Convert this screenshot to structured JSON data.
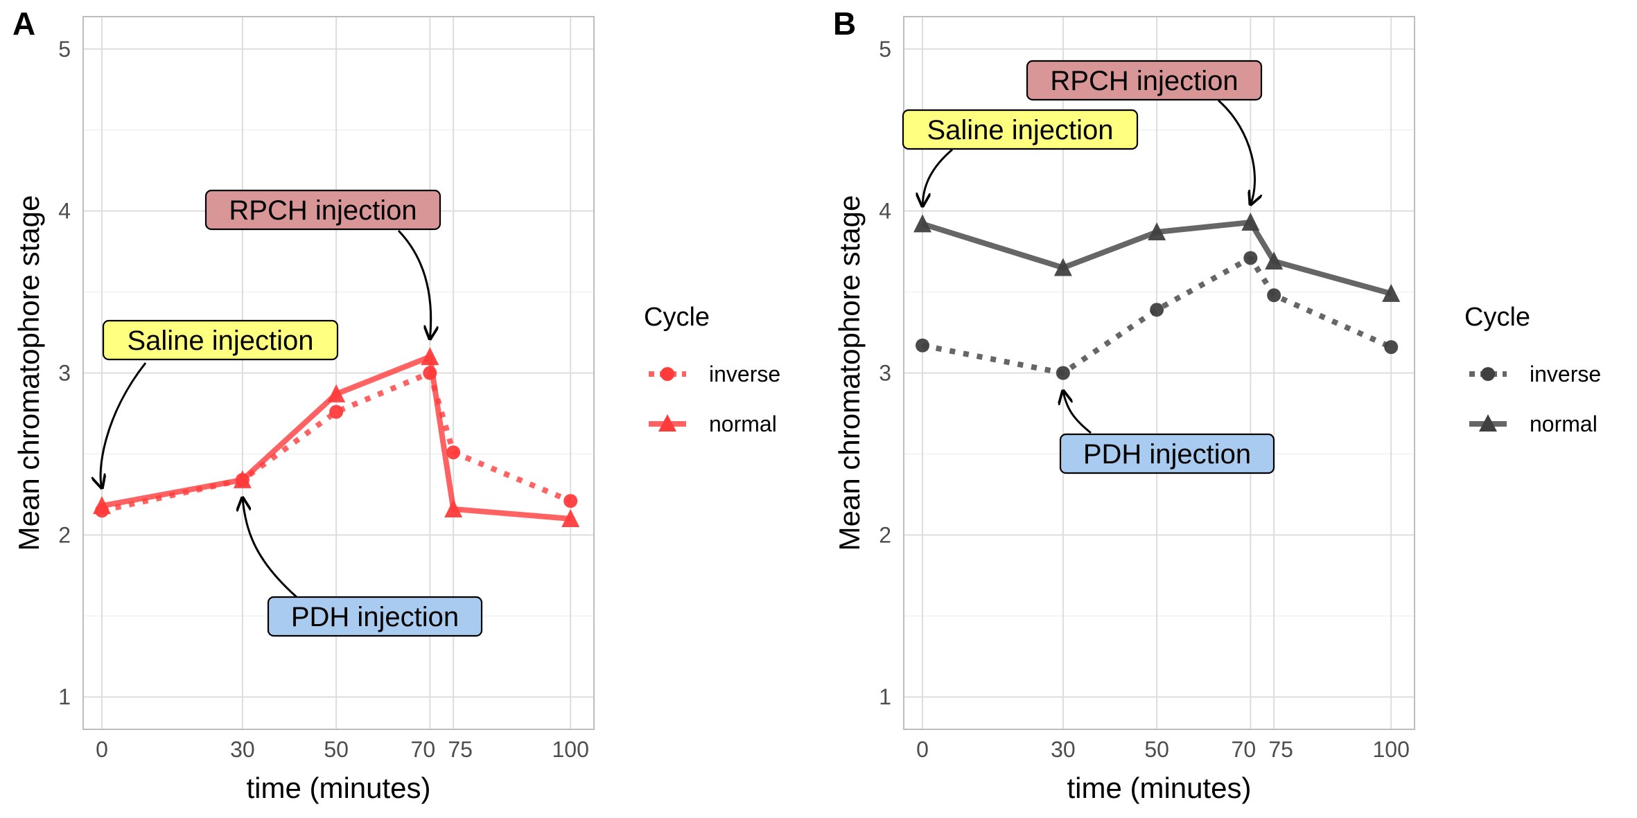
{
  "chart_data": [
    {
      "panel_tag": "A",
      "type": "line",
      "xlabel": "time (minutes)",
      "ylabel": "Mean chromatophore stage",
      "xlim": [
        -4,
        105
      ],
      "ylim": [
        0.8,
        5.2
      ],
      "x_ticks": [
        0,
        30,
        50,
        70,
        75,
        100
      ],
      "y_ticks": [
        1,
        2,
        3,
        4,
        5
      ],
      "grid": true,
      "legend_title": "Cycle",
      "legend_position": "right",
      "color": "#ff3b3b",
      "series": [
        {
          "name": "inverse",
          "line_style": "dotted",
          "marker": "circle",
          "x": [
            0,
            30,
            50,
            70,
            75,
            100
          ],
          "y": [
            2.15,
            2.34,
            2.76,
            3.0,
            2.51,
            2.21
          ]
        },
        {
          "name": "normal",
          "line_style": "solid",
          "marker": "triangle",
          "x": [
            0,
            30,
            50,
            70,
            75,
            100
          ],
          "y": [
            2.18,
            2.34,
            2.87,
            3.1,
            2.16,
            2.1
          ]
        }
      ],
      "annotations": [
        {
          "text": "Saline injection",
          "fill": "#ffff80",
          "target_x": 0,
          "target_y": 2.18
        },
        {
          "text": "PDH injection",
          "fill": "#a9cbef",
          "target_x": 30,
          "target_y": 2.34
        },
        {
          "text": "RPCH injection",
          "fill": "#d99696",
          "target_x": 70,
          "target_y": 3.1
        }
      ]
    },
    {
      "panel_tag": "B",
      "type": "line",
      "xlabel": "time (minutes)",
      "ylabel": "Mean chromatophore stage",
      "xlim": [
        -4,
        105
      ],
      "ylim": [
        0.8,
        5.2
      ],
      "x_ticks": [
        0,
        30,
        50,
        70,
        75,
        100
      ],
      "y_ticks": [
        1,
        2,
        3,
        4,
        5
      ],
      "grid": true,
      "legend_title": "Cycle",
      "legend_position": "right",
      "color": "#404040",
      "series": [
        {
          "name": "inverse",
          "line_style": "dotted",
          "marker": "circle",
          "x": [
            0,
            30,
            50,
            70,
            75,
            100
          ],
          "y": [
            3.17,
            3.0,
            3.39,
            3.71,
            3.48,
            3.16
          ]
        },
        {
          "name": "normal",
          "line_style": "solid",
          "marker": "triangle",
          "x": [
            0,
            30,
            50,
            70,
            75,
            100
          ],
          "y": [
            3.92,
            3.65,
            3.87,
            3.93,
            3.69,
            3.49
          ]
        }
      ],
      "annotations": [
        {
          "text": "Saline injection",
          "fill": "#ffff80",
          "target_x": 0,
          "target_y": 3.92
        },
        {
          "text": "PDH injection",
          "fill": "#a9cbef",
          "target_x": 30,
          "target_y": 3.0
        },
        {
          "text": "RPCH injection",
          "fill": "#d99696",
          "target_x": 70,
          "target_y": 3.93
        }
      ]
    }
  ]
}
